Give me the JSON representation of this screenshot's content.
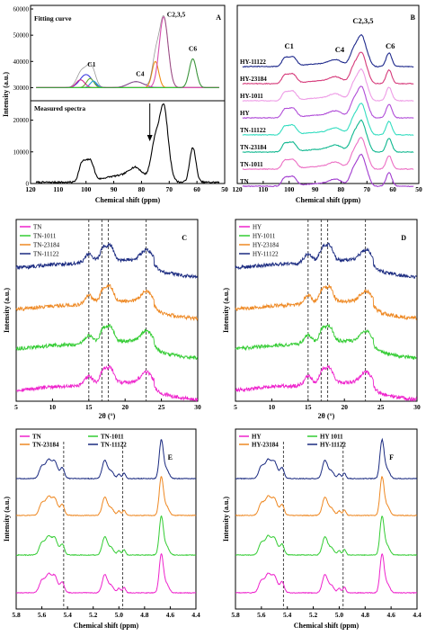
{
  "chart_data": [
    {
      "id": "A",
      "type": "line",
      "panel_letter": "A",
      "xlabel": "Chemical shift (ppm)",
      "ylabel": "Intensity (a.u.)",
      "xlim": [
        120,
        50
      ],
      "x_ticks": [
        "120",
        "110",
        "100",
        "90",
        "80",
        "70",
        "60",
        "50"
      ],
      "top": {
        "label": "Fitting curve",
        "ylim": [
          25000,
          60000
        ],
        "y_ticks": [
          "60000",
          "50000",
          "40000",
          "30000"
        ],
        "annotations": [
          "C1",
          "C4",
          "C2,3,5",
          "C6"
        ],
        "series": [
          {
            "name": "C1",
            "color": "#3a3adf",
            "center": 100,
            "width": 2.2,
            "height": 5000
          },
          {
            "name": "C1",
            "color": "#5fae2d",
            "center": 98.5,
            "width": 1.3,
            "height": 3500
          },
          {
            "name": "C1",
            "color": "#2a9fd6",
            "center": 97.3,
            "width": 1.2,
            "height": 2500
          },
          {
            "name": "C1",
            "color": "#d12c8c",
            "center": 102,
            "width": 1.5,
            "height": 3000
          },
          {
            "name": "C4",
            "color": "#a64ab8",
            "center": 82,
            "width": 2.8,
            "height": 2300
          },
          {
            "name": "C2,3,5",
            "color": "#f08d1a",
            "center": 75,
            "width": 1.2,
            "height": 10000
          },
          {
            "name": "C2,3,5",
            "color": "#d84fb0",
            "center": 72,
            "width": 1.6,
            "height": 27000
          },
          {
            "name": "C6",
            "color": "#33cc33",
            "center": 61.5,
            "width": 1.3,
            "height": 11000
          }
        ]
      },
      "bottom": {
        "label": "Measured spectra",
        "ylim": [
          0,
          25000
        ],
        "y_ticks": [
          "20000",
          "10000",
          "0"
        ]
      }
    },
    {
      "id": "B",
      "type": "line",
      "panel_letter": "B",
      "xlabel": "Chemical shift (ppm)",
      "ylabel": "",
      "xlim": [
        120,
        50
      ],
      "x_ticks": [
        "120",
        "110",
        "100",
        "90",
        "80",
        "70",
        "60",
        "50"
      ],
      "annotations": [
        "C1",
        "C4",
        "C2,3,5",
        "C6"
      ],
      "series": [
        {
          "name": "HY-11122",
          "color": "#1f2a8c"
        },
        {
          "name": "HY-23184",
          "color": "#d63a7a"
        },
        {
          "name": "HY-1011",
          "color": "#ee9ce6"
        },
        {
          "name": "HY",
          "color": "#b14ed8"
        },
        {
          "name": "TN-11122",
          "color": "#33ddc0"
        },
        {
          "name": "TN-23184",
          "color": "#11b890"
        },
        {
          "name": "TN-1011",
          "color": "#ec6fc4"
        },
        {
          "name": "TN",
          "color": "#a13ccf"
        }
      ]
    },
    {
      "id": "C",
      "type": "line",
      "panel_letter": "C",
      "xlabel": "2θ (°)",
      "ylabel": "Intensity (a.u.)",
      "xlim": [
        5,
        30
      ],
      "x_ticks": [
        "5",
        "10",
        "15",
        "20",
        "25",
        "30"
      ],
      "dashed_lines": [
        15,
        16.8,
        17.7,
        22.9
      ],
      "series": [
        {
          "name": "TN",
          "color": "#ee22cc"
        },
        {
          "name": "TN-1011",
          "color": "#33cc33"
        },
        {
          "name": "TN-23184",
          "color": "#ee8822"
        },
        {
          "name": "TN-11122",
          "color": "#1a2a80"
        }
      ]
    },
    {
      "id": "D",
      "type": "line",
      "panel_letter": "D",
      "xlabel": "2θ (°)",
      "ylabel": "Intensity (a.u.)",
      "xlim": [
        5,
        30
      ],
      "x_ticks": [
        "5",
        "10",
        "15",
        "20",
        "25",
        "30"
      ],
      "dashed_lines": [
        15,
        16.8,
        17.7,
        22.9
      ],
      "series": [
        {
          "name": "HY",
          "color": "#ee22cc"
        },
        {
          "name": "HY-1011",
          "color": "#33cc33"
        },
        {
          "name": "HY-23184",
          "color": "#ee8822"
        },
        {
          "name": "HY-11122",
          "color": "#1a2a80"
        }
      ]
    },
    {
      "id": "E",
      "type": "line",
      "panel_letter": "E",
      "xlabel": "Chemical shift (ppm)",
      "ylabel": "Intensity (a.u.)",
      "xlim": [
        5.8,
        4.4
      ],
      "x_ticks": [
        "5.8",
        "5.6",
        "5.4",
        "5.2",
        "5.0",
        "4.8",
        "4.6",
        "4.4"
      ],
      "dashed_lines": [
        5.43,
        4.97
      ],
      "series": [
        {
          "name": "TN",
          "color": "#ee22cc"
        },
        {
          "name": "TN-1011",
          "color": "#33cc33"
        },
        {
          "name": "TN-23184",
          "color": "#ee8822"
        },
        {
          "name": "TN-11122",
          "color": "#1a2a80"
        }
      ]
    },
    {
      "id": "F",
      "type": "line",
      "panel_letter": "F",
      "xlabel": "Chemical shift (ppm)",
      "ylabel": "Intensity (a.u.)",
      "xlim": [
        5.8,
        4.4
      ],
      "x_ticks": [
        "5.8",
        "5.6",
        "5.4",
        "5.2",
        "5.0",
        "4.8",
        "4.6",
        "4.4"
      ],
      "dashed_lines": [
        5.43,
        4.97
      ],
      "series": [
        {
          "name": "HY",
          "color": "#ee22cc"
        },
        {
          "name": "HY 1011",
          "color": "#33cc33"
        },
        {
          "name": "HY-23184",
          "color": "#ee8822"
        },
        {
          "name": "HY-11122",
          "color": "#1a2a80"
        }
      ]
    }
  ]
}
